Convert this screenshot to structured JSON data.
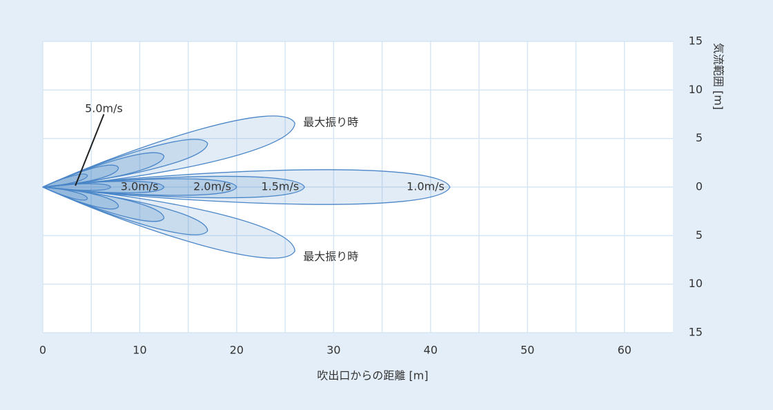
{
  "chart_data": {
    "type": "lobe",
    "xlabel": "吹出口からの距離 [m]",
    "ylabel": "気流範囲 [m]",
    "xlim": [
      0,
      65
    ],
    "ylim": [
      -15,
      15
    ],
    "xticks": [
      0,
      10,
      20,
      30,
      40,
      50,
      60
    ],
    "xminor_ticks": [
      5,
      15,
      25,
      35,
      45,
      55
    ],
    "yticks": [
      {
        "value": -15,
        "label": "15"
      },
      {
        "value": -10,
        "label": "10"
      },
      {
        "value": -5,
        "label": "5"
      },
      0,
      5,
      10,
      15
    ],
    "grid": true,
    "annotations": [
      "最大振り時",
      "最大振り時"
    ],
    "series": [
      {
        "name": "1.0m/s",
        "color": "#4a86c8",
        "reach": 42,
        "spread": 2.1,
        "swing_x": 26,
        "swing_y": 6.6
      },
      {
        "name": "1.5m/s",
        "color": "#4a86c8",
        "reach": 27,
        "spread": 1.3,
        "swing_x": 17,
        "swing_y": 4.5
      },
      {
        "name": "2.0m/s",
        "color": "#4a86c8",
        "reach": 20,
        "spread": 1.0,
        "swing_x": 12.5,
        "swing_y": 3.2
      },
      {
        "name": "3.0m/s",
        "color": "#4a86c8",
        "reach": 12.5,
        "spread": 0.7,
        "swing_x": 7.8,
        "swing_y": 2.0
      },
      {
        "name": "5.0m/s",
        "color": "#4a86c8",
        "reach": 7,
        "spread": 0.4,
        "swing_x": 4.6,
        "swing_y": 1.2
      }
    ]
  }
}
